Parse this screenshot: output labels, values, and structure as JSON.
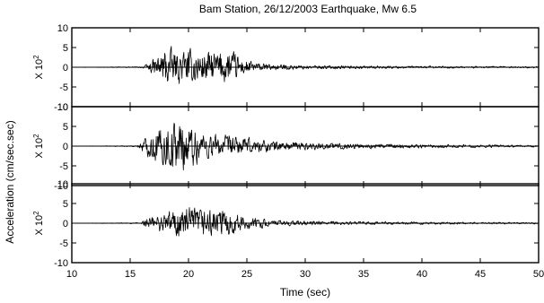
{
  "chart_data": {
    "type": "line",
    "title": "Bam Station, 26/12/2003 Earthquake, Mw 6.5",
    "xlabel": "Time (sec)",
    "ylabel": "Acceleration (cm/sec.sec)",
    "xlim": [
      10,
      50
    ],
    "x_ticks": [
      "10",
      "15",
      "20",
      "25",
      "30",
      "35",
      "40",
      "45",
      "50"
    ],
    "grid": false,
    "panels": [
      {
        "scale_label": "X 10^2",
        "ylim": [
          -10,
          10
        ],
        "y_ticks": [
          "10",
          "5",
          "0",
          "-5",
          "-10"
        ],
        "envelope": [
          {
            "t": 10,
            "a": 0
          },
          {
            "t": 16.0,
            "a": 0.2
          },
          {
            "t": 16.5,
            "a": 1.0
          },
          {
            "t": 17.3,
            "a": 3.5
          },
          {
            "t": 18.0,
            "a": 6.5
          },
          {
            "t": 19.0,
            "a": 5.0
          },
          {
            "t": 20.5,
            "a": 5.5
          },
          {
            "t": 22.0,
            "a": 5.0
          },
          {
            "t": 23.5,
            "a": 5.5
          },
          {
            "t": 24.5,
            "a": 3.0
          },
          {
            "t": 26.0,
            "a": 1.2
          },
          {
            "t": 30.0,
            "a": 0.6
          },
          {
            "t": 38.0,
            "a": 0.4
          },
          {
            "t": 50.0,
            "a": 0.25
          }
        ]
      },
      {
        "scale_label": "X 10^2",
        "ylim": [
          -10,
          10
        ],
        "y_ticks": [
          "10",
          "5",
          "0",
          "-5",
          "-10"
        ],
        "envelope": [
          {
            "t": 10,
            "a": 0
          },
          {
            "t": 15.6,
            "a": 0.2
          },
          {
            "t": 16.2,
            "a": 2.5
          },
          {
            "t": 17.5,
            "a": 6.0
          },
          {
            "t": 19.0,
            "a": 9.0
          },
          {
            "t": 20.5,
            "a": 6.5
          },
          {
            "t": 22.0,
            "a": 4.0
          },
          {
            "t": 24.0,
            "a": 3.0
          },
          {
            "t": 26.5,
            "a": 2.0
          },
          {
            "t": 30.0,
            "a": 1.2
          },
          {
            "t": 37.0,
            "a": 0.7
          },
          {
            "t": 50.0,
            "a": 0.3
          }
        ]
      },
      {
        "scale_label": "X 10^2",
        "ylim": [
          -10,
          10
        ],
        "y_ticks": [
          "10",
          "5",
          "0",
          "-5",
          "-10"
        ],
        "envelope": [
          {
            "t": 10,
            "a": 0
          },
          {
            "t": 15.8,
            "a": 0.2
          },
          {
            "t": 16.3,
            "a": 1.5
          },
          {
            "t": 17.5,
            "a": 2.8
          },
          {
            "t": 19.5,
            "a": 5.5
          },
          {
            "t": 21.0,
            "a": 4.5
          },
          {
            "t": 23.0,
            "a": 4.5
          },
          {
            "t": 24.5,
            "a": 2.5
          },
          {
            "t": 27.0,
            "a": 1.0
          },
          {
            "t": 32.0,
            "a": 0.6
          },
          {
            "t": 40.0,
            "a": 0.4
          },
          {
            "t": 50.0,
            "a": 0.25
          }
        ]
      }
    ]
  }
}
